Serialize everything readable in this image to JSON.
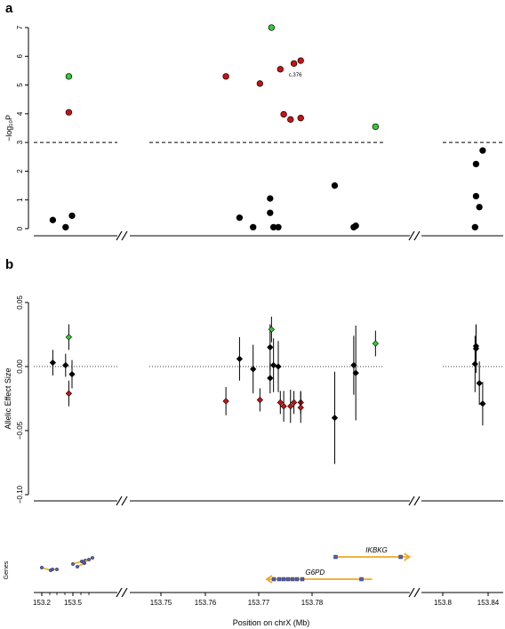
{
  "chart_data": [
    {
      "panel": "a",
      "type": "scatter",
      "ylabel": "−log₁₀P",
      "ylim": [
        0,
        7
      ],
      "yticks": [
        "0",
        "1",
        "2",
        "3",
        "4",
        "5",
        "6",
        "7"
      ],
      "threshold": 3,
      "annotation": "c.376",
      "x_scale": "broken",
      "color_legend": {
        "black": "#000000",
        "red": "#cc1111",
        "green": "#33cc33"
      },
      "points": [
        {
          "x": 153.203,
          "y": 0.3,
          "c": "black"
        },
        {
          "x": 153.211,
          "y": 0.05,
          "c": "black"
        },
        {
          "x": 153.213,
          "y": 5.3,
          "c": "green"
        },
        {
          "x": 153.213,
          "y": 4.05,
          "c": "red"
        },
        {
          "x": 153.215,
          "y": 0.45,
          "c": "black"
        },
        {
          "x": 153.754,
          "y": 5.3,
          "c": "red"
        },
        {
          "x": 153.756,
          "y": 0.38,
          "c": "black"
        },
        {
          "x": 153.758,
          "y": 0.05,
          "c": "black"
        },
        {
          "x": 153.759,
          "y": 5.05,
          "c": "red"
        },
        {
          "x": 153.7605,
          "y": 1.05,
          "c": "black"
        },
        {
          "x": 153.7605,
          "y": 0.55,
          "c": "black"
        },
        {
          "x": 153.7607,
          "y": 7.0,
          "c": "green"
        },
        {
          "x": 153.761,
          "y": 0.05,
          "c": "black"
        },
        {
          "x": 153.7617,
          "y": 0.05,
          "c": "black"
        },
        {
          "x": 153.762,
          "y": 5.55,
          "c": "red"
        },
        {
          "x": 153.7625,
          "y": 3.98,
          "c": "red"
        },
        {
          "x": 153.7635,
          "y": 3.8,
          "c": "red"
        },
        {
          "x": 153.764,
          "y": 5.75,
          "c": "red"
        },
        {
          "x": 153.765,
          "y": 5.85,
          "c": "red"
        },
        {
          "x": 153.765,
          "y": 3.85,
          "c": "red"
        },
        {
          "x": 153.77,
          "y": 1.5,
          "c": "black"
        },
        {
          "x": 153.7728,
          "y": 0.05,
          "c": "black"
        },
        {
          "x": 153.7731,
          "y": 0.1,
          "c": "black"
        },
        {
          "x": 153.776,
          "y": 3.55,
          "c": "green"
        },
        {
          "x": 153.8357,
          "y": 0.05,
          "c": "black"
        },
        {
          "x": 153.836,
          "y": 1.13,
          "c": "black"
        },
        {
          "x": 153.836,
          "y": 2.25,
          "c": "black"
        },
        {
          "x": 153.837,
          "y": 0.75,
          "c": "black"
        },
        {
          "x": 153.838,
          "y": 2.72,
          "c": "black"
        }
      ]
    },
    {
      "panel": "b",
      "type": "scatter",
      "ylabel": "Allelic Effect Size",
      "ylim": [
        -0.1,
        0.05
      ],
      "yticks": [
        "−0.10",
        "−0.05",
        "0.00",
        "0.05"
      ],
      "points": [
        {
          "x": 153.203,
          "y": 0.003,
          "lo": -0.007,
          "hi": 0.013,
          "c": "black"
        },
        {
          "x": 153.211,
          "y": 0.001,
          "lo": -0.008,
          "hi": 0.01,
          "c": "black"
        },
        {
          "x": 153.213,
          "y": 0.023,
          "lo": 0.013,
          "hi": 0.033,
          "c": "green"
        },
        {
          "x": 153.213,
          "y": -0.021,
          "lo": -0.031,
          "hi": -0.011,
          "c": "red"
        },
        {
          "x": 153.215,
          "y": -0.006,
          "lo": -0.017,
          "hi": 0.005,
          "c": "black"
        },
        {
          "x": 153.754,
          "y": -0.027,
          "lo": -0.038,
          "hi": -0.016,
          "c": "red"
        },
        {
          "x": 153.756,
          "y": 0.006,
          "lo": -0.011,
          "hi": 0.023,
          "c": "black"
        },
        {
          "x": 153.758,
          "y": -0.002,
          "lo": -0.021,
          "hi": 0.017,
          "c": "black"
        },
        {
          "x": 153.759,
          "y": -0.026,
          "lo": -0.035,
          "hi": -0.017,
          "c": "red"
        },
        {
          "x": 153.7605,
          "y": 0.015,
          "lo": -0.003,
          "hi": 0.033,
          "c": "black"
        },
        {
          "x": 153.7605,
          "y": -0.009,
          "lo": -0.021,
          "hi": 0.003,
          "c": "black"
        },
        {
          "x": 153.7607,
          "y": 0.029,
          "lo": 0.019,
          "hi": 0.039,
          "c": "green"
        },
        {
          "x": 153.761,
          "y": 0.001,
          "lo": -0.02,
          "hi": 0.022,
          "c": "black"
        },
        {
          "x": 153.7617,
          "y": 0.0,
          "lo": -0.02,
          "hi": 0.02,
          "c": "black"
        },
        {
          "x": 153.762,
          "y": -0.028,
          "lo": -0.037,
          "hi": -0.019,
          "c": "red"
        },
        {
          "x": 153.7625,
          "y": -0.031,
          "lo": -0.043,
          "hi": -0.019,
          "c": "red"
        },
        {
          "x": 153.7635,
          "y": -0.031,
          "lo": -0.044,
          "hi": -0.018,
          "c": "red"
        },
        {
          "x": 153.764,
          "y": -0.028,
          "lo": -0.037,
          "hi": -0.019,
          "c": "red"
        },
        {
          "x": 153.765,
          "y": -0.028,
          "lo": -0.037,
          "hi": -0.019,
          "c": "red"
        },
        {
          "x": 153.765,
          "y": -0.032,
          "lo": -0.044,
          "hi": -0.02,
          "c": "red"
        },
        {
          "x": 153.77,
          "y": -0.04,
          "lo": -0.076,
          "hi": -0.004,
          "c": "black"
        },
        {
          "x": 153.7728,
          "y": 0.001,
          "lo": -0.022,
          "hi": 0.024,
          "c": "black"
        },
        {
          "x": 153.7731,
          "y": -0.005,
          "lo": -0.042,
          "hi": 0.032,
          "c": "black"
        },
        {
          "x": 153.776,
          "y": 0.018,
          "lo": 0.008,
          "hi": 0.028,
          "c": "green"
        },
        {
          "x": 153.8357,
          "y": 0.002,
          "lo": -0.02,
          "hi": 0.024,
          "c": "black"
        },
        {
          "x": 153.836,
          "y": 0.016,
          "lo": 0.0,
          "hi": 0.032,
          "c": "black"
        },
        {
          "x": 153.836,
          "y": 0.014,
          "lo": -0.005,
          "hi": 0.033,
          "c": "black"
        },
        {
          "x": 153.837,
          "y": -0.013,
          "lo": -0.03,
          "hi": 0.004,
          "c": "black"
        },
        {
          "x": 153.838,
          "y": -0.029,
          "lo": -0.046,
          "hi": -0.012,
          "c": "black"
        }
      ]
    },
    {
      "panel": "genes",
      "type": "diagram",
      "ylabel": "Genes",
      "xlabel": "Position on chrX (Mb)",
      "xticks": [
        "153.2",
        "153.5",
        "153.75",
        "153.76",
        "153.77",
        "153.78",
        "153.8",
        "153.84"
      ],
      "genes": [
        {
          "name": "IKBKG",
          "start": 153.77,
          "end": 153.781,
          "dir": "+"
        },
        {
          "name": "G6PD",
          "start": 153.76,
          "end": 153.7755,
          "dir": "-"
        }
      ]
    }
  ],
  "labels": {
    "panel_a": "a",
    "panel_b": "b"
  }
}
